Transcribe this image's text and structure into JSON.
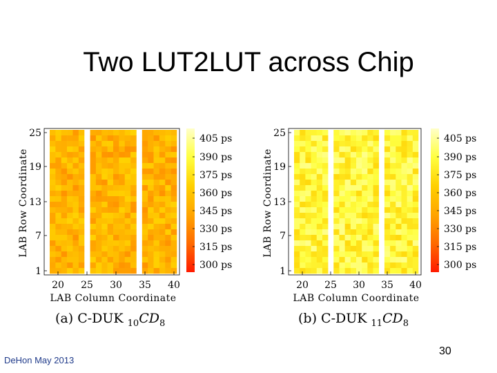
{
  "slide": {
    "title": "Two LUT2LUT across Chip",
    "footer": "DeHon May 2013",
    "page_number": "30"
  },
  "chart_data": [
    {
      "type": "heatmap",
      "caption_prefix": "(a)",
      "caption_name": "C-DUK",
      "caption_sub_left": "10",
      "caption_cd": "CD",
      "caption_sub_right": "8",
      "xlabel": "LAB Column Coordinate",
      "ylabel": "LAB Row Coordinate",
      "x_ticks": [
        "20",
        "25",
        "30",
        "35",
        "40"
      ],
      "y_ticks": [
        "25",
        "19",
        "13",
        "7",
        "1"
      ],
      "colorbar_ticks": [
        "405 ps",
        "390 ps",
        "375 ps",
        "360 ps",
        "345 ps",
        "330 ps",
        "315 ps",
        "300 ps"
      ],
      "colorbar_range_ps": [
        300,
        410
      ],
      "mean_ps": 352
    },
    {
      "type": "heatmap",
      "caption_prefix": "(b)",
      "caption_name": "C-DUK",
      "caption_sub_left": "11",
      "caption_cd": "CD",
      "caption_sub_right": "8",
      "xlabel": "LAB Column Coordinate",
      "ylabel": "LAB Row Coordinate",
      "x_ticks": [
        "20",
        "25",
        "30",
        "35",
        "40"
      ],
      "y_ticks": [
        "25",
        "19",
        "13",
        "7",
        "1"
      ],
      "colorbar_ticks": [
        "405 ps",
        "390 ps",
        "375 ps",
        "360 ps",
        "345 ps",
        "330 ps",
        "315 ps",
        "300 ps"
      ],
      "colorbar_range_ps": [
        300,
        410
      ],
      "mean_ps": 385
    }
  ],
  "colors": {
    "colormap": [
      "#ff1a00",
      "#ff6a00",
      "#ffa500",
      "#ffd000",
      "#ffff40",
      "#ffffc8"
    ]
  }
}
